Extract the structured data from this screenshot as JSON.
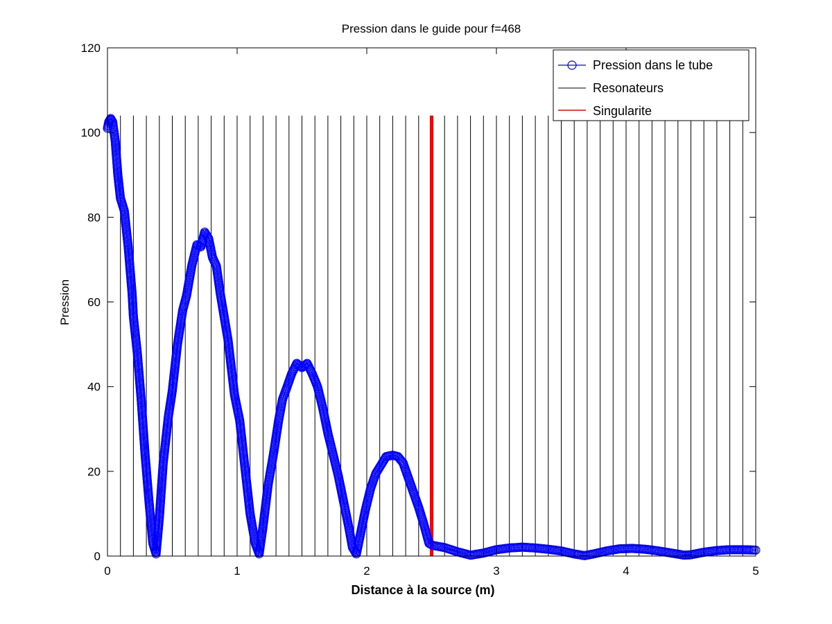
{
  "chart_data": {
    "type": "line",
    "title": "Pression dans le guide pour f=468",
    "xlabel": "Distance à la source (m)",
    "ylabel": "Pression",
    "xlim": [
      0,
      5
    ],
    "ylim": [
      0,
      120
    ],
    "xticks": [
      0,
      1,
      2,
      3,
      4,
      5
    ],
    "yticks": [
      0,
      20,
      40,
      60,
      80,
      100,
      120
    ],
    "grid": false,
    "legend_position": "top-right",
    "legend": [
      {
        "label": "Pression dans le tube",
        "color": "#0000ff",
        "style": "line-circle"
      },
      {
        "label": "Resonateurs",
        "color": "#000000",
        "style": "line"
      },
      {
        "label": "Singularite",
        "color": "#ff0000",
        "style": "line"
      }
    ],
    "series": [
      {
        "name": "Pression dans le tube",
        "color": "#0000ff",
        "marker": "circle",
        "points": [
          [
            0.0,
            101
          ],
          [
            0.01,
            102.5
          ],
          [
            0.025,
            103.3
          ],
          [
            0.04,
            102.5
          ],
          [
            0.06,
            98
          ],
          [
            0.08,
            90
          ],
          [
            0.1,
            84.5
          ],
          [
            0.13,
            81.5
          ],
          [
            0.16,
            73
          ],
          [
            0.19,
            62
          ],
          [
            0.2,
            56.5
          ],
          [
            0.23,
            48
          ],
          [
            0.26,
            37
          ],
          [
            0.29,
            24
          ],
          [
            0.32,
            13
          ],
          [
            0.35,
            3
          ],
          [
            0.375,
            0.5
          ],
          [
            0.4,
            9
          ],
          [
            0.43,
            22
          ],
          [
            0.47,
            33
          ],
          [
            0.5,
            39
          ],
          [
            0.54,
            50
          ],
          [
            0.58,
            58
          ],
          [
            0.61,
            61.5
          ],
          [
            0.65,
            68.5
          ],
          [
            0.69,
            73.5
          ],
          [
            0.72,
            73
          ],
          [
            0.75,
            76.5
          ],
          [
            0.78,
            75
          ],
          [
            0.81,
            70.5
          ],
          [
            0.84,
            68.5
          ],
          [
            0.87,
            62
          ],
          [
            0.9,
            56.5
          ],
          [
            0.93,
            51
          ],
          [
            0.98,
            38
          ],
          [
            1.02,
            32
          ],
          [
            1.06,
            21
          ],
          [
            1.1,
            10
          ],
          [
            1.14,
            3
          ],
          [
            1.17,
            0.5
          ],
          [
            1.2,
            7
          ],
          [
            1.24,
            17
          ],
          [
            1.28,
            24
          ],
          [
            1.32,
            32
          ],
          [
            1.35,
            37
          ],
          [
            1.38,
            39.5
          ],
          [
            1.42,
            43
          ],
          [
            1.46,
            45.5
          ],
          [
            1.5,
            44.5
          ],
          [
            1.54,
            45.5
          ],
          [
            1.58,
            43
          ],
          [
            1.62,
            40
          ],
          [
            1.66,
            35
          ],
          [
            1.7,
            29
          ],
          [
            1.74,
            24
          ],
          [
            1.78,
            19
          ],
          [
            1.82,
            13
          ],
          [
            1.86,
            7
          ],
          [
            1.89,
            2
          ],
          [
            1.92,
            0.5
          ],
          [
            1.95,
            5
          ],
          [
            1.99,
            11
          ],
          [
            2.03,
            16
          ],
          [
            2.07,
            19.5
          ],
          [
            2.11,
            21.5
          ],
          [
            2.15,
            23.5
          ],
          [
            2.2,
            23.8
          ],
          [
            2.24,
            23.5
          ],
          [
            2.28,
            22
          ],
          [
            2.32,
            18.5
          ],
          [
            2.36,
            15
          ],
          [
            2.4,
            11.5
          ],
          [
            2.44,
            7.5
          ],
          [
            2.48,
            3
          ],
          [
            2.51,
            2.5
          ],
          [
            2.6,
            2
          ],
          [
            2.7,
            1
          ],
          [
            2.8,
            0.2
          ],
          [
            2.9,
            0.7
          ],
          [
            3.0,
            1.5
          ],
          [
            3.1,
            1.9
          ],
          [
            3.2,
            2.1
          ],
          [
            3.3,
            1.9
          ],
          [
            3.4,
            1.6
          ],
          [
            3.5,
            1.2
          ],
          [
            3.6,
            0.5
          ],
          [
            3.68,
            0.1
          ],
          [
            3.75,
            0.5
          ],
          [
            3.85,
            1.2
          ],
          [
            3.95,
            1.7
          ],
          [
            4.05,
            1.8
          ],
          [
            4.15,
            1.6
          ],
          [
            4.25,
            1.2
          ],
          [
            4.35,
            0.7
          ],
          [
            4.45,
            0.2
          ],
          [
            4.5,
            0.3
          ],
          [
            4.6,
            0.9
          ],
          [
            4.7,
            1.3
          ],
          [
            4.8,
            1.5
          ],
          [
            4.9,
            1.5
          ],
          [
            5.0,
            1.4
          ]
        ]
      }
    ],
    "resonators": {
      "color": "#000000",
      "x_positions": [
        0.1,
        0.2,
        0.3,
        0.4,
        0.5,
        0.6,
        0.7,
        0.8,
        0.9,
        1.0,
        1.1,
        1.2,
        1.3,
        1.4,
        1.5,
        1.6,
        1.7,
        1.8,
        1.9,
        2.0,
        2.1,
        2.2,
        2.3,
        2.4,
        2.5,
        2.6,
        2.7,
        2.8,
        2.9,
        3.0,
        3.1,
        3.2,
        3.3,
        3.4,
        3.5,
        3.6,
        3.7,
        3.8,
        3.9,
        4.0,
        4.1,
        4.2,
        4.3,
        4.4,
        4.5,
        4.6,
        4.7,
        4.8,
        4.9
      ],
      "y_range": [
        0,
        104
      ]
    },
    "singularite": {
      "color": "#ff0000",
      "x": 2.5,
      "y_range": [
        0,
        104
      ]
    }
  }
}
